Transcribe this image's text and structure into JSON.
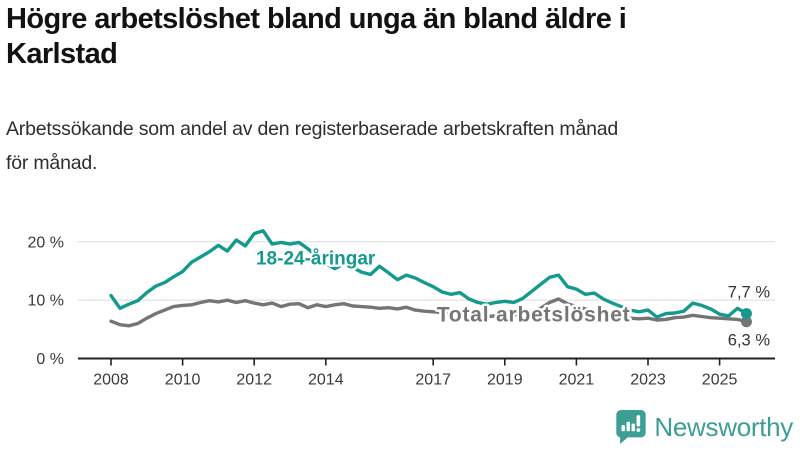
{
  "title": {
    "line1": "Högre arbetslöshet bland unga än bland äldre i",
    "line2": "Karlstad"
  },
  "subtitle": {
    "line1": "Arbetssökande som andel av den registerbaserade arbetskraften månad",
    "line2": "för månad."
  },
  "logo": {
    "name": "Newsworthy",
    "color": "#3d9e93"
  },
  "chart_data": {
    "type": "line",
    "title": "Högre arbetslöshet bland unga än bland äldre i Karlstad",
    "xlabel": "",
    "ylabel": "Arbetssökande som andel av den registerbaserade arbetskraften",
    "grid": "horizontal",
    "legend": "inline-labels",
    "xlim": [
      2008,
      2025.75
    ],
    "ylim": [
      0,
      24
    ],
    "x_ticks": [
      2008,
      2010,
      2012,
      2014,
      2017,
      2019,
      2021,
      2023,
      2025
    ],
    "y_ticks": [
      {
        "value": 0,
        "label": "0 %"
      },
      {
        "value": 10,
        "label": "10 %"
      },
      {
        "value": 20,
        "label": "20 %"
      }
    ],
    "x": [
      2008,
      2008.25,
      2008.5,
      2008.75,
      2009,
      2009.25,
      2009.5,
      2009.75,
      2010,
      2010.25,
      2010.5,
      2010.75,
      2011,
      2011.25,
      2011.5,
      2011.75,
      2012,
      2012.25,
      2012.5,
      2012.75,
      2013,
      2013.25,
      2013.5,
      2013.75,
      2014,
      2014.25,
      2014.5,
      2014.75,
      2015,
      2015.25,
      2015.5,
      2015.75,
      2016,
      2016.25,
      2016.5,
      2016.75,
      2017,
      2017.25,
      2017.5,
      2017.75,
      2018,
      2018.25,
      2018.5,
      2018.75,
      2019,
      2019.25,
      2019.5,
      2019.75,
      2020,
      2020.25,
      2020.5,
      2020.75,
      2021,
      2021.25,
      2021.5,
      2021.75,
      2022,
      2022.25,
      2022.5,
      2022.75,
      2023,
      2023.25,
      2023.5,
      2023.75,
      2024,
      2024.25,
      2024.5,
      2024.75,
      2025,
      2025.25,
      2025.5,
      2025.75
    ],
    "series": [
      {
        "name": "18-24-åringar",
        "color": "#149a8d",
        "label_x": 2012.05,
        "label_y": 16.1,
        "end_value": 7.7,
        "end_label": "7,7 %",
        "end_label_position": "above",
        "values": [
          10.8,
          8.6,
          9.3,
          9.9,
          11.3,
          12.4,
          13.0,
          14.0,
          14.9,
          16.5,
          17.4,
          18.3,
          19.4,
          18.4,
          20.3,
          19.3,
          21.4,
          21.9,
          19.6,
          19.9,
          19.6,
          19.9,
          18.8,
          17.5,
          16.3,
          15.4,
          16.2,
          15.6,
          14.8,
          14.4,
          15.8,
          14.7,
          13.5,
          14.3,
          13.8,
          13.0,
          12.3,
          11.4,
          11.0,
          11.3,
          10.2,
          9.6,
          9.3,
          9.6,
          9.8,
          9.6,
          10.3,
          11.5,
          12.7,
          13.9,
          14.3,
          12.3,
          11.9,
          11.0,
          11.2,
          10.2,
          9.5,
          8.9,
          8.3,
          8.0,
          8.3,
          7.1,
          7.7,
          7.8,
          8.1,
          9.5,
          9.1,
          8.5,
          7.6,
          7.3,
          8.6,
          7.7
        ]
      },
      {
        "name": "Total arbetslöshet",
        "color": "#757575",
        "label_x": 2017.1,
        "label_y": 6.3,
        "end_value": 6.3,
        "end_label": "6,3 %",
        "end_label_position": "below",
        "values": [
          6.4,
          5.8,
          5.6,
          6.0,
          6.9,
          7.7,
          8.3,
          8.9,
          9.1,
          9.2,
          9.6,
          9.9,
          9.7,
          10.0,
          9.6,
          9.9,
          9.5,
          9.2,
          9.5,
          8.9,
          9.3,
          9.4,
          8.7,
          9.2,
          8.9,
          9.2,
          9.4,
          9.0,
          8.9,
          8.8,
          8.6,
          8.7,
          8.5,
          8.8,
          8.3,
          8.1,
          8.0,
          7.9,
          7.8,
          7.7,
          7.5,
          7.3,
          7.2,
          7.3,
          7.3,
          7.4,
          7.6,
          8.0,
          8.6,
          9.6,
          10.2,
          9.4,
          8.9,
          8.5,
          8.0,
          7.6,
          7.3,
          7.1,
          6.9,
          6.8,
          6.9,
          6.6,
          6.7,
          7.0,
          7.1,
          7.4,
          7.2,
          7.0,
          6.9,
          6.8,
          6.7,
          6.3
        ]
      }
    ]
  }
}
